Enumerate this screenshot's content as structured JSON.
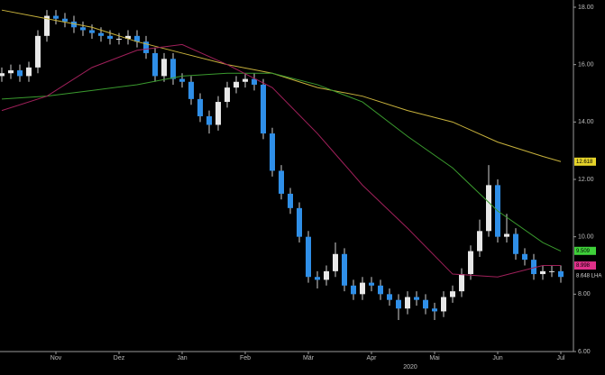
{
  "chart_data": {
    "type": "candlestick",
    "categories": [
      null,
      null,
      null,
      null,
      null,
      null,
      "Nov",
      null,
      null,
      null,
      null,
      null,
      null,
      "Dez",
      null,
      null,
      null,
      null,
      null,
      null,
      "Jan",
      null,
      null,
      null,
      null,
      null,
      null,
      "Feb",
      null,
      null,
      null,
      null,
      null,
      null,
      "Mär",
      null,
      null,
      null,
      null,
      null,
      null,
      "Apr",
      null,
      null,
      null,
      null,
      null,
      null,
      "Mai",
      null,
      null,
      null,
      null,
      null,
      null,
      "Jun",
      null,
      null,
      null,
      null,
      null,
      null,
      "Jul"
    ],
    "x_group_label": "2020",
    "open": [
      15.6,
      15.7,
      15.8,
      15.6,
      15.9,
      17.0,
      17.7,
      17.6,
      17.5,
      17.3,
      17.2,
      17.1,
      17.0,
      16.9,
      16.9,
      17.0,
      16.8,
      16.4,
      15.6,
      16.2,
      15.5,
      15.4,
      14.8,
      14.2,
      13.9,
      14.7,
      15.2,
      15.4,
      15.5,
      15.3,
      13.6,
      12.3,
      11.5,
      11.0,
      10.0,
      8.6,
      8.5,
      8.8,
      9.4,
      8.3,
      8.0,
      8.4,
      8.3,
      8.0,
      7.8,
      7.5,
      7.9,
      7.8,
      7.5,
      7.4,
      7.9,
      8.1,
      8.7,
      9.5,
      10.2,
      11.8,
      10.0,
      10.1,
      9.4,
      9.2,
      8.7,
      8.8,
      8.8
    ],
    "high": [
      15.9,
      16.0,
      16.0,
      16.1,
      17.2,
      17.9,
      17.9,
      17.8,
      17.7,
      17.5,
      17.4,
      17.3,
      17.2,
      17.1,
      17.2,
      17.2,
      17.0,
      16.6,
      16.4,
      16.4,
      15.7,
      15.6,
      15.0,
      14.4,
      14.9,
      15.4,
      15.6,
      15.7,
      15.7,
      15.5,
      13.8,
      12.5,
      11.7,
      11.2,
      10.2,
      8.8,
      9.0,
      9.8,
      9.6,
      8.5,
      8.6,
      8.6,
      8.5,
      8.2,
      8.0,
      8.1,
      8.1,
      8.0,
      7.7,
      8.1,
      8.3,
      8.9,
      9.7,
      10.6,
      12.5,
      12.0,
      10.8,
      10.3,
      9.6,
      9.4,
      9.0,
      9.0,
      9.0
    ],
    "low": [
      15.4,
      15.5,
      15.4,
      15.4,
      15.7,
      16.8,
      17.4,
      17.3,
      17.1,
      17.0,
      16.9,
      16.8,
      16.7,
      16.7,
      16.7,
      16.6,
      16.2,
      15.4,
      15.4,
      15.3,
      15.2,
      14.6,
      14.0,
      13.6,
      13.7,
      14.5,
      15.0,
      15.2,
      15.1,
      13.4,
      12.1,
      11.3,
      10.8,
      9.8,
      8.4,
      8.2,
      8.3,
      8.6,
      8.1,
      7.8,
      7.8,
      8.1,
      7.8,
      7.6,
      7.1,
      7.3,
      7.6,
      7.3,
      7.1,
      7.2,
      7.7,
      7.9,
      8.5,
      9.3,
      10.0,
      9.8,
      9.8,
      9.2,
      9.0,
      8.5,
      8.5,
      8.6,
      8.4
    ],
    "close": [
      15.7,
      15.8,
      15.6,
      15.9,
      17.0,
      17.7,
      17.6,
      17.5,
      17.3,
      17.2,
      17.1,
      17.0,
      16.9,
      16.9,
      17.0,
      16.8,
      16.4,
      15.6,
      16.2,
      15.5,
      15.4,
      14.8,
      14.2,
      13.9,
      14.7,
      15.2,
      15.4,
      15.5,
      15.3,
      13.6,
      12.3,
      11.5,
      11.0,
      10.0,
      8.6,
      8.5,
      8.8,
      9.4,
      8.3,
      8.0,
      8.4,
      8.3,
      8.0,
      7.8,
      7.5,
      7.9,
      7.8,
      7.5,
      7.4,
      7.9,
      8.1,
      8.7,
      9.5,
      10.2,
      11.8,
      10.0,
      10.1,
      9.4,
      9.2,
      8.7,
      8.8,
      8.8,
      8.6
    ],
    "up_color": "#e8e8e8",
    "down_color": "#2f8fe8",
    "series": [
      {
        "color": "#c8b23c",
        "x": [
          0,
          5,
          10,
          15,
          20,
          25,
          30,
          35,
          40,
          45,
          50,
          55,
          60,
          62
        ],
        "values": [
          17.9,
          17.6,
          17.3,
          16.8,
          16.4,
          16.0,
          15.7,
          15.2,
          14.9,
          14.4,
          14.0,
          13.3,
          12.8,
          12.62
        ]
      },
      {
        "color": "#3a9a2e",
        "x": [
          0,
          5,
          10,
          15,
          20,
          25,
          30,
          35,
          40,
          45,
          50,
          55,
          60,
          62
        ],
        "values": [
          14.8,
          14.9,
          15.1,
          15.3,
          15.6,
          15.7,
          15.7,
          15.3,
          14.7,
          13.5,
          12.4,
          10.9,
          9.8,
          9.5
        ]
      },
      {
        "color": "#a0205a",
        "x": [
          0,
          5,
          10,
          15,
          20,
          25,
          30,
          35,
          40,
          45,
          50,
          55,
          60,
          62
        ],
        "values": [
          14.4,
          14.9,
          15.9,
          16.5,
          16.7,
          16.0,
          15.2,
          13.6,
          11.8,
          10.3,
          8.7,
          8.6,
          9.0,
          9.0
        ]
      }
    ],
    "price_tags": [
      {
        "value": 12.618,
        "color": "#e6d42a"
      },
      {
        "value": 9.509,
        "color": "#3fd13a"
      },
      {
        "value": 8.998,
        "color": "#e0308a"
      },
      {
        "value": {
          "value": 8.648,
          "label": "8.648 LHA"
        },
        "color": "#d9d9d9"
      }
    ],
    "ylim": [
      6,
      18
    ],
    "yticks": [
      {
        "value": 6,
        "label": "6.00"
      },
      {
        "value": 8,
        "label": "8.00"
      },
      {
        "value": 10,
        "label": "10.00"
      },
      {
        "value": 12,
        "label": "12.00"
      },
      {
        "value": 14,
        "label": "14.00"
      },
      {
        "value": 16,
        "label": "16.00"
      },
      {
        "value": 18,
        "label": "18.00"
      }
    ],
    "y_axis_side": "right"
  }
}
